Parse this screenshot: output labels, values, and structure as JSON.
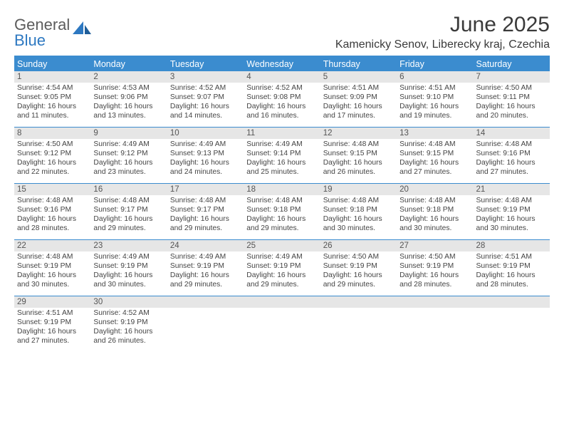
{
  "brand": {
    "word1": "General",
    "word2": "Blue"
  },
  "title": "June 2025",
  "location": "Kamenicky Senov, Liberecky kraj, Czechia",
  "colors": {
    "header_bg": "#3b8ccf",
    "header_text": "#ffffff",
    "daynum_bg": "#e6e6e6",
    "daynum_text": "#555555",
    "body_text": "#444444",
    "rule": "#3b8ccf"
  },
  "weekdays": [
    "Sunday",
    "Monday",
    "Tuesday",
    "Wednesday",
    "Thursday",
    "Friday",
    "Saturday"
  ],
  "weeks": [
    [
      {
        "n": "1",
        "sr": "4:54 AM",
        "ss": "9:05 PM",
        "dl": "16 hours and 11 minutes."
      },
      {
        "n": "2",
        "sr": "4:53 AM",
        "ss": "9:06 PM",
        "dl": "16 hours and 13 minutes."
      },
      {
        "n": "3",
        "sr": "4:52 AM",
        "ss": "9:07 PM",
        "dl": "16 hours and 14 minutes."
      },
      {
        "n": "4",
        "sr": "4:52 AM",
        "ss": "9:08 PM",
        "dl": "16 hours and 16 minutes."
      },
      {
        "n": "5",
        "sr": "4:51 AM",
        "ss": "9:09 PM",
        "dl": "16 hours and 17 minutes."
      },
      {
        "n": "6",
        "sr": "4:51 AM",
        "ss": "9:10 PM",
        "dl": "16 hours and 19 minutes."
      },
      {
        "n": "7",
        "sr": "4:50 AM",
        "ss": "9:11 PM",
        "dl": "16 hours and 20 minutes."
      }
    ],
    [
      {
        "n": "8",
        "sr": "4:50 AM",
        "ss": "9:12 PM",
        "dl": "16 hours and 22 minutes."
      },
      {
        "n": "9",
        "sr": "4:49 AM",
        "ss": "9:12 PM",
        "dl": "16 hours and 23 minutes."
      },
      {
        "n": "10",
        "sr": "4:49 AM",
        "ss": "9:13 PM",
        "dl": "16 hours and 24 minutes."
      },
      {
        "n": "11",
        "sr": "4:49 AM",
        "ss": "9:14 PM",
        "dl": "16 hours and 25 minutes."
      },
      {
        "n": "12",
        "sr": "4:48 AM",
        "ss": "9:15 PM",
        "dl": "16 hours and 26 minutes."
      },
      {
        "n": "13",
        "sr": "4:48 AM",
        "ss": "9:15 PM",
        "dl": "16 hours and 27 minutes."
      },
      {
        "n": "14",
        "sr": "4:48 AM",
        "ss": "9:16 PM",
        "dl": "16 hours and 27 minutes."
      }
    ],
    [
      {
        "n": "15",
        "sr": "4:48 AM",
        "ss": "9:16 PM",
        "dl": "16 hours and 28 minutes."
      },
      {
        "n": "16",
        "sr": "4:48 AM",
        "ss": "9:17 PM",
        "dl": "16 hours and 29 minutes."
      },
      {
        "n": "17",
        "sr": "4:48 AM",
        "ss": "9:17 PM",
        "dl": "16 hours and 29 minutes."
      },
      {
        "n": "18",
        "sr": "4:48 AM",
        "ss": "9:18 PM",
        "dl": "16 hours and 29 minutes."
      },
      {
        "n": "19",
        "sr": "4:48 AM",
        "ss": "9:18 PM",
        "dl": "16 hours and 30 minutes."
      },
      {
        "n": "20",
        "sr": "4:48 AM",
        "ss": "9:18 PM",
        "dl": "16 hours and 30 minutes."
      },
      {
        "n": "21",
        "sr": "4:48 AM",
        "ss": "9:19 PM",
        "dl": "16 hours and 30 minutes."
      }
    ],
    [
      {
        "n": "22",
        "sr": "4:48 AM",
        "ss": "9:19 PM",
        "dl": "16 hours and 30 minutes."
      },
      {
        "n": "23",
        "sr": "4:49 AM",
        "ss": "9:19 PM",
        "dl": "16 hours and 30 minutes."
      },
      {
        "n": "24",
        "sr": "4:49 AM",
        "ss": "9:19 PM",
        "dl": "16 hours and 29 minutes."
      },
      {
        "n": "25",
        "sr": "4:49 AM",
        "ss": "9:19 PM",
        "dl": "16 hours and 29 minutes."
      },
      {
        "n": "26",
        "sr": "4:50 AM",
        "ss": "9:19 PM",
        "dl": "16 hours and 29 minutes."
      },
      {
        "n": "27",
        "sr": "4:50 AM",
        "ss": "9:19 PM",
        "dl": "16 hours and 28 minutes."
      },
      {
        "n": "28",
        "sr": "4:51 AM",
        "ss": "9:19 PM",
        "dl": "16 hours and 28 minutes."
      }
    ],
    [
      {
        "n": "29",
        "sr": "4:51 AM",
        "ss": "9:19 PM",
        "dl": "16 hours and 27 minutes."
      },
      {
        "n": "30",
        "sr": "4:52 AM",
        "ss": "9:19 PM",
        "dl": "16 hours and 26 minutes."
      },
      null,
      null,
      null,
      null,
      null
    ]
  ],
  "labels": {
    "sunrise": "Sunrise:",
    "sunset": "Sunset:",
    "daylight": "Daylight:"
  }
}
